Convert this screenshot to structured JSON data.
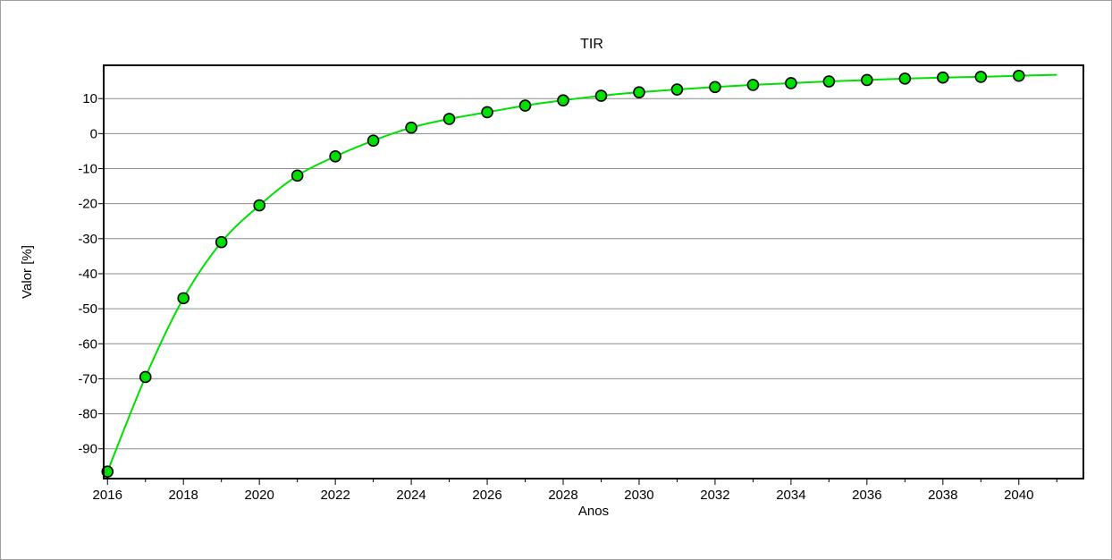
{
  "chart_data": {
    "type": "line",
    "title": "TIR",
    "xlabel": "Anos",
    "ylabel": "Valor [%]",
    "xlim": [
      2015.9,
      2041.7
    ],
    "ylim": [
      -98.5,
      19.5
    ],
    "xticks": [
      2016,
      2018,
      2020,
      2022,
      2024,
      2026,
      2028,
      2030,
      2032,
      2034,
      2036,
      2038,
      2040
    ],
    "yticks": [
      10,
      0,
      -10,
      -20,
      -30,
      -40,
      -50,
      -60,
      -70,
      -80,
      -90
    ],
    "grid": true,
    "legend": "none",
    "line_color": "#00e000",
    "marker_color": "#00e000",
    "marker_edge": "#000000",
    "series": [
      {
        "x": [
          2016,
          2017,
          2018,
          2019,
          2020,
          2021,
          2022,
          2023,
          2024,
          2025,
          2026,
          2027,
          2028,
          2029,
          2030,
          2031,
          2032,
          2033,
          2034,
          2035,
          2036,
          2037,
          2038,
          2039,
          2040
        ],
        "values": [
          -96.5,
          -69.5,
          -47,
          -31,
          -20.5,
          -12,
          -6.5,
          -2,
          1.7,
          4.2,
          6.1,
          8,
          9.5,
          10.8,
          11.8,
          12.6,
          13.3,
          13.9,
          14.4,
          14.9,
          15.3,
          15.7,
          16,
          16.2,
          16.5
        ]
      }
    ]
  }
}
